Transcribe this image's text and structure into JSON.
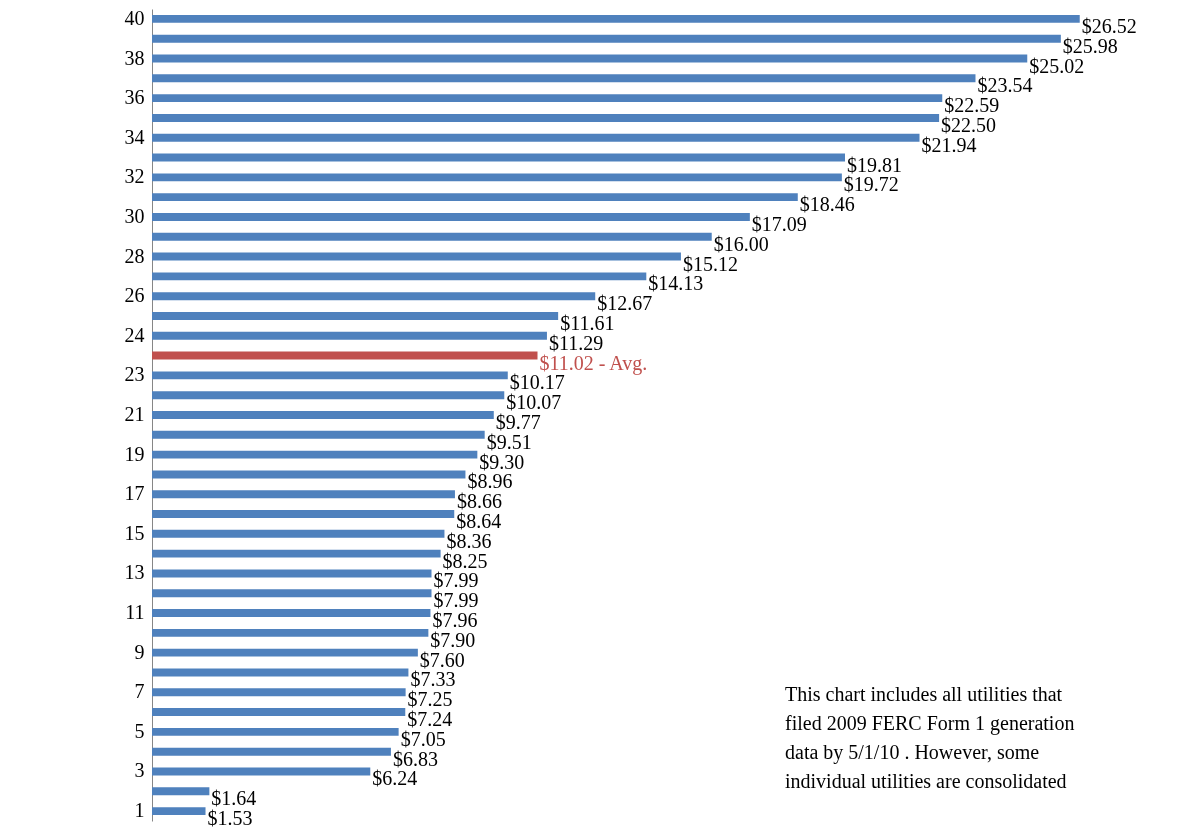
{
  "chart_data": {
    "type": "bar",
    "orientation": "horizontal",
    "categories": [
      "40",
      null,
      "38",
      null,
      "36",
      null,
      "34",
      null,
      "32",
      null,
      "30",
      null,
      "28",
      null,
      "26",
      null,
      "24",
      null,
      "23",
      null,
      "21",
      null,
      "19",
      null,
      "17",
      null,
      "15",
      null,
      "13",
      null,
      "11",
      null,
      "9",
      null,
      "7",
      null,
      "5",
      null,
      "3",
      null,
      "1"
    ],
    "values": [
      26.52,
      25.98,
      25.02,
      23.54,
      22.59,
      22.5,
      21.94,
      19.81,
      19.72,
      18.46,
      17.09,
      16.0,
      15.12,
      14.13,
      12.67,
      11.61,
      11.29,
      11.02,
      10.17,
      10.07,
      9.77,
      9.51,
      9.3,
      8.96,
      8.66,
      8.64,
      8.36,
      8.25,
      7.99,
      7.99,
      7.96,
      7.9,
      7.6,
      7.33,
      7.25,
      7.24,
      7.05,
      6.83,
      6.24,
      1.64,
      1.53
    ],
    "value_labels": [
      "$26.52",
      "$25.98",
      "$25.02",
      "$23.54",
      "$22.59",
      "$22.50",
      "$21.94",
      "$19.81",
      "$19.72",
      "$18.46",
      "$17.09",
      "$16.00",
      "$15.12",
      "$14.13",
      "$12.67",
      "$11.61",
      "$11.29",
      "$11.02 - Avg.",
      "$10.17",
      "$10.07",
      "$9.77",
      "$9.51",
      "$9.30",
      "$8.96",
      "$8.66",
      "$8.64",
      "$8.36",
      "$8.25",
      "$7.99",
      "$7.99",
      "$7.96",
      "$7.90",
      "$7.60",
      "$7.33",
      "$7.25",
      "$7.24",
      "$7.05",
      "$6.83",
      "$6.24",
      "$1.64",
      "$1.53"
    ],
    "colors": [
      "#4f81bd",
      "#4f81bd",
      "#4f81bd",
      "#4f81bd",
      "#4f81bd",
      "#4f81bd",
      "#4f81bd",
      "#4f81bd",
      "#4f81bd",
      "#4f81bd",
      "#4f81bd",
      "#4f81bd",
      "#4f81bd",
      "#4f81bd",
      "#4f81bd",
      "#4f81bd",
      "#4f81bd",
      "#c0504d",
      "#4f81bd",
      "#4f81bd",
      "#4f81bd",
      "#4f81bd",
      "#4f81bd",
      "#4f81bd",
      "#4f81bd",
      "#4f81bd",
      "#4f81bd",
      "#4f81bd",
      "#4f81bd",
      "#4f81bd",
      "#4f81bd",
      "#4f81bd",
      "#4f81bd",
      "#4f81bd",
      "#4f81bd",
      "#4f81bd",
      "#4f81bd",
      "#4f81bd",
      "#4f81bd",
      "#4f81bd",
      "#4f81bd"
    ],
    "xlim": [
      0,
      28.5
    ],
    "tick_labels": "y",
    "annotations": [
      "This chart includes all utilities that\nfiled 2009 FERC Form 1 generation\ndata by 5/1/10 . However, some\nindividual utilities are consolidated"
    ]
  }
}
